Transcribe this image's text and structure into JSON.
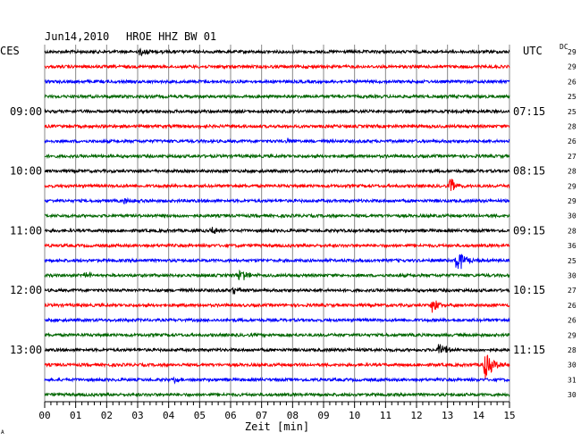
{
  "header": {
    "date": "Jun14,2010",
    "station": "HROE HHZ BW 01",
    "left_tz": "CES",
    "right_tz": "UTC",
    "dc_label": "DC"
  },
  "time_labels_left": [
    "09:00",
    "10:00",
    "11:00",
    "12:00",
    "13:00"
  ],
  "time_labels_right": [
    "07:15",
    "08:15",
    "09:15",
    "10:15",
    "11:15"
  ],
  "dc_values": [
    "29",
    "29",
    "26",
    "25",
    "25",
    "28",
    "26",
    "27",
    "28",
    "29",
    "29",
    "30",
    "28",
    "36",
    "25",
    "30",
    "27",
    "26",
    "26",
    "29",
    "28",
    "30",
    "31",
    "30"
  ],
  "x_axis": {
    "label": "Zeit [min]",
    "ticks": [
      "00",
      "01",
      "02",
      "03",
      "04",
      "05",
      "06",
      "07",
      "08",
      "09",
      "10",
      "11",
      "12",
      "13",
      "14",
      "15"
    ]
  },
  "trace_colors": [
    "#000000",
    "#ff0000",
    "#0000ff",
    "#006600"
  ],
  "events": [
    {
      "trace": 0,
      "minute": 3.1,
      "amp": 5
    },
    {
      "trace": 6,
      "minute": 7.8,
      "amp": 3
    },
    {
      "trace": 9,
      "minute": 13.1,
      "amp": 9
    },
    {
      "trace": 10,
      "minute": 2.6,
      "amp": 4
    },
    {
      "trace": 12,
      "minute": 5.4,
      "amp": 4
    },
    {
      "trace": 14,
      "minute": 13.3,
      "amp": 17
    },
    {
      "trace": 15,
      "minute": 1.3,
      "amp": 4
    },
    {
      "trace": 15,
      "minute": 6.3,
      "amp": 8
    },
    {
      "trace": 16,
      "minute": 6.1,
      "amp": 4
    },
    {
      "trace": 17,
      "minute": 12.5,
      "amp": 8
    },
    {
      "trace": 20,
      "minute": 12.7,
      "amp": 10
    },
    {
      "trace": 21,
      "minute": 14.2,
      "amp": 17
    },
    {
      "trace": 22,
      "minute": 4.2,
      "amp": 3
    }
  ],
  "footer_mark": "A"
}
